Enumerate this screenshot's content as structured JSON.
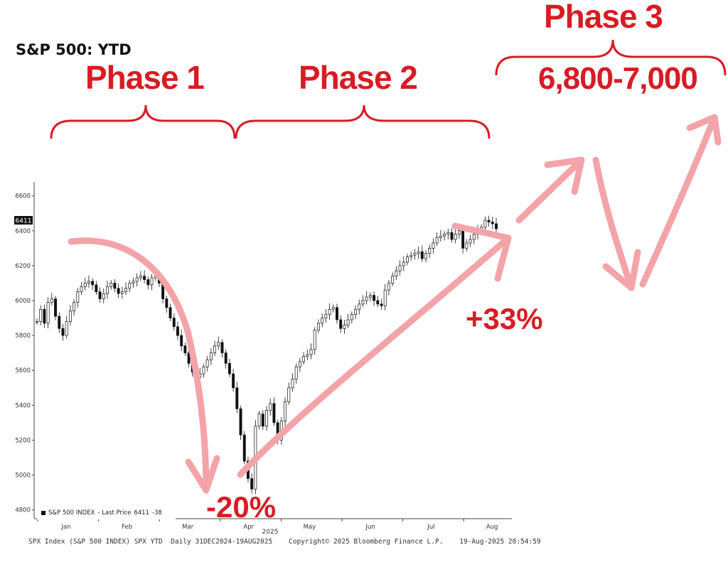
{
  "headline": "S&P 500: YTD",
  "annotations": {
    "phase1": "Phase 1",
    "phase2": "Phase 2",
    "phase3": "Phase 3",
    "target": "6,800-7,000",
    "drawdown": "-20%",
    "rally": "+33%"
  },
  "legend": {
    "name": "S&P 500 INDEX",
    "separator": "- Last Price",
    "last": "6411",
    "change": "-38"
  },
  "footer": "SPX Index (S&P 500 INDEX) SPX YTD  Daily 31DEC2024-19AUG2025    Copyright© 2025 Bloomberg Finance L.P.    19-Aug-2025 20:54:59",
  "colors": {
    "accent": "#d81c24",
    "arrow": "#f4a3a8",
    "candle": "#111111"
  },
  "chart_data": {
    "type": "candlestick",
    "title": "",
    "ylim": [
      4750,
      6680
    ],
    "y_ticks": [
      4800,
      5000,
      5200,
      5400,
      5600,
      5800,
      6000,
      6200,
      6400,
      6600
    ],
    "x_ticks": [
      "Jan",
      "Feb",
      "Mar",
      "Apr",
      "May",
      "Jun",
      "Jul",
      "Aug"
    ],
    "x_year_label": "2025",
    "last_price_tag": "6411",
    "grid": false,
    "series": [
      {
        "values": [
          5880,
          5950,
          5870,
          5990,
          6010,
          5910,
          5840,
          5800,
          5880,
          5940,
          5990,
          6050,
          6080,
          6100,
          6110,
          6090,
          6050,
          6010,
          6040,
          6080,
          6100,
          6070,
          6040,
          6050,
          6070,
          6100,
          6110,
          6130,
          6140,
          6120,
          6090,
          6130,
          6140,
          6100,
          6010,
          5960,
          5900,
          5850,
          5800,
          5740,
          5700,
          5640,
          5590,
          5560,
          5580,
          5620,
          5660,
          5700,
          5740,
          5760,
          5700,
          5640,
          5580,
          5500,
          5380,
          5230,
          5080,
          4980,
          4920,
          5280,
          5350,
          5280,
          5370,
          5410,
          5300,
          5200,
          5310,
          5420,
          5500,
          5550,
          5620,
          5650,
          5680,
          5690,
          5720,
          5830,
          5870,
          5900,
          5920,
          5950,
          5960,
          5890,
          5840,
          5860,
          5890,
          5920,
          5950,
          5980,
          6000,
          6020,
          6030,
          6000,
          5980,
          5970,
          6060,
          6100,
          6140,
          6170,
          6200,
          6220,
          6250,
          6260,
          6270,
          6280,
          6240,
          6270,
          6300,
          6330,
          6360,
          6370,
          6380,
          6390,
          6350,
          6380,
          6400,
          6300,
          6330,
          6350,
          6380,
          6400,
          6420,
          6460,
          6450,
          6440,
          6411
        ]
      }
    ]
  }
}
